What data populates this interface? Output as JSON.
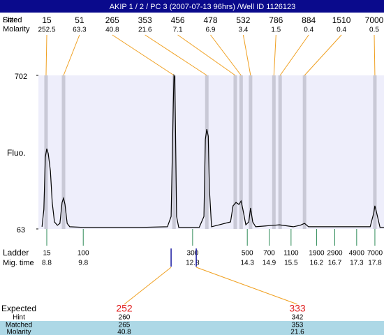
{
  "title": "AKIP 1 / 2 / PC 3 (2007-07-13 96hrs) /Well ID 1126123",
  "row_labels": {
    "size": "Size",
    "fitted": "Fitted",
    "molarity": "Molarity",
    "ladder": "Ladder",
    "mig_time": "Mig. time"
  },
  "chart_data": {
    "type": "line",
    "ylabel": "Fluo.",
    "ylim": [
      63,
      702
    ],
    "yticks": [
      63,
      702
    ],
    "xlim": [
      8.57,
      18.05
    ],
    "color": "#000000",
    "x": [
      8.67,
      8.72,
      8.76,
      8.8,
      8.84,
      8.9,
      8.95,
      9.01,
      9.09,
      9.16,
      9.22,
      9.26,
      9.3,
      9.36,
      9.43,
      9.82,
      11.35,
      12.11,
      12.21,
      12.27,
      12.29,
      12.31,
      12.33,
      12.36,
      12.42,
      12.98,
      13.11,
      13.15,
      13.19,
      13.23,
      13.26,
      13.32,
      13.84,
      13.91,
      13.99,
      14.07,
      14.13,
      14.18,
      14.26,
      14.34,
      14.39,
      14.45,
      14.53,
      15.03,
      15.18,
      15.56,
      15.75,
      15.87,
      15.98,
      17.67,
      17.77,
      17.8,
      17.84,
      17.94,
      18.05
    ],
    "values": [
      72,
      144,
      362,
      397,
      377,
      304,
      173,
      92,
      78,
      86,
      173,
      191,
      165,
      86,
      72,
      69,
      69,
      72,
      115,
      580,
      702,
      696,
      493,
      115,
      69,
      69,
      115,
      435,
      478,
      449,
      231,
      72,
      92,
      159,
      173,
      165,
      179,
      144,
      80,
      92,
      150,
      92,
      72,
      78,
      80,
      72,
      78,
      86,
      72,
      72,
      130,
      159,
      136,
      69,
      69
    ],
    "peaks": [
      {
        "size": 15,
        "molarity": 252.5,
        "time": 8.78
      },
      {
        "size": 51,
        "molarity": 63.3,
        "time": 9.26
      },
      {
        "size": 265,
        "molarity": 40.8,
        "time": 12.29
      },
      {
        "size": 353,
        "molarity": 21.6,
        "time": 13.19
      },
      {
        "size": 456,
        "molarity": 7.1,
        "time": 13.97
      },
      {
        "size": 478,
        "molarity": 6.9,
        "time": 14.13
      },
      {
        "size": 532,
        "molarity": 3.4,
        "time": 14.39
      },
      {
        "size": 786,
        "molarity": 1.5,
        "time": 15.03
      },
      {
        "size": 884,
        "molarity": 0.4,
        "time": 15.2
      },
      {
        "size": 1510,
        "molarity": 0.4,
        "time": 15.87
      },
      {
        "size": 7000,
        "molarity": 0.5,
        "time": 17.8
      }
    ]
  },
  "ladder": [
    {
      "size": 15,
      "time": 8.8
    },
    {
      "size": 100,
      "time": 9.8
    },
    {
      "size": 300,
      "time": 12.8
    },
    {
      "size": 500,
      "time": 14.3
    },
    {
      "size": 700,
      "time": 14.9
    },
    {
      "size": 1100,
      "time": 15.5
    },
    {
      "size": 1900,
      "time": 16.2
    },
    {
      "size": 2900,
      "time": 16.7
    },
    {
      "size": 4900,
      "time": 17.3
    },
    {
      "size": 7000,
      "time": 17.8
    }
  ],
  "expected_table": {
    "headers": {
      "expected": "Expected",
      "hint": "Hint",
      "matched": "Matched",
      "molarity": "Molarity"
    },
    "columns": [
      {
        "time": 12.21,
        "expected": 252,
        "hint": 260,
        "matched": 265,
        "molarity": 40.8
      },
      {
        "time": 12.9,
        "expected": 333,
        "hint": 342,
        "matched": 353,
        "molarity": 21.6
      }
    ]
  }
}
